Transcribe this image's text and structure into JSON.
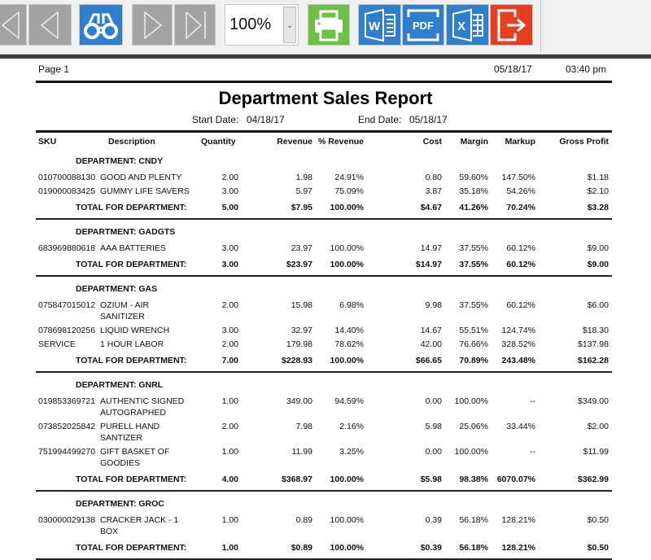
{
  "toolbar": {
    "buttons": [
      {
        "name": "first-page",
        "icon": "first-page-icon"
      },
      {
        "name": "previous-page",
        "icon": "previous-page-icon"
      },
      {
        "name": "find",
        "icon": "binoculars-icon"
      },
      {
        "name": "next-page",
        "icon": "next-page-icon"
      },
      {
        "name": "last-page",
        "icon": "last-page-icon"
      },
      {
        "name": "print",
        "icon": "printer-icon"
      },
      {
        "name": "export-word",
        "icon": "word-icon",
        "label": "W"
      },
      {
        "name": "export-pdf",
        "icon": "pdf-icon",
        "label": "PDF"
      },
      {
        "name": "export-excel",
        "icon": "excel-icon",
        "label": "X"
      },
      {
        "name": "exit",
        "icon": "exit-icon"
      }
    ],
    "zoom_value": "100%",
    "colors": {
      "gray": "#a3a3a3",
      "blue": "#2f7fcd",
      "green": "#6cc043",
      "red": "#e2401f"
    }
  },
  "report": {
    "page_label": "Page 1",
    "print_date": "05/18/17",
    "print_time": "03:40 pm",
    "title": "Department Sales Report",
    "start_date_label": "Start Date:",
    "start_date": "04/18/17",
    "end_date_label": "End Date:",
    "end_date": "05/18/17",
    "columns": [
      "SKU",
      "Description",
      "Quantity",
      "Revenue",
      "% Revenue",
      "Cost",
      "Margin",
      "Markup",
      "Gross Profit"
    ],
    "total_label": "TOTAL FOR DEPARTMENT:",
    "departments": [
      {
        "title": "DEPARTMENT: CNDY",
        "items": [
          [
            "010700088130",
            "GOOD AND PLENTY",
            "2.00",
            "1.98",
            "24.91%",
            "0.80",
            "59.60%",
            "147.50%",
            "$1.18"
          ],
          [
            "019000083425",
            "GUMMY LIFE SAVERS",
            "3.00",
            "5.97",
            "75.09%",
            "3.87",
            "35.18%",
            "54.26%",
            "$2.10"
          ]
        ],
        "total": [
          "5.00",
          "$7.95",
          "100.00%",
          "$4.67",
          "41.26%",
          "70.24%",
          "$3.28"
        ]
      },
      {
        "title": "DEPARTMENT: GADGTS",
        "items": [
          [
            "683969880618",
            "AAA BATTERIES",
            "3.00",
            "23.97",
            "100.00%",
            "14.97",
            "37.55%",
            "60.12%",
            "$9.00"
          ]
        ],
        "total": [
          "3.00",
          "$23.97",
          "100.00%",
          "$14.97",
          "37.55%",
          "60.12%",
          "$9.00"
        ]
      },
      {
        "title": "DEPARTMENT: GAS",
        "items": [
          [
            "075847015012",
            "OZIUM - AIR SANITIZER",
            "2.00",
            "15.98",
            "6.98%",
            "9.98",
            "37.55%",
            "60.12%",
            "$6.00"
          ],
          [
            "078698120256",
            "LIQUID WRENCH",
            "3.00",
            "32.97",
            "14.40%",
            "14.67",
            "55.51%",
            "124.74%",
            "$18.30"
          ],
          [
            "SERVICE",
            "1 HOUR LABOR",
            "2.00",
            "179.98",
            "78.62%",
            "42.00",
            "76.66%",
            "328.52%",
            "$137.98"
          ]
        ],
        "total": [
          "7.00",
          "$228.93",
          "100.00%",
          "$66.65",
          "70.89%",
          "243.48%",
          "$162.28"
        ]
      },
      {
        "title": "DEPARTMENT: GNRL",
        "items": [
          [
            "019853369721",
            "AUTHENTIC SIGNED AUTOGRAPHED",
            "1.00",
            "349.00",
            "94.59%",
            "0.00",
            "100.00%",
            "--",
            "$349.00"
          ],
          [
            "073852025842",
            "PURELL HAND SANTIZER",
            "2.00",
            "7.98",
            "2.16%",
            "5.98",
            "25.06%",
            "33.44%",
            "$2.00"
          ],
          [
            "751994499270",
            "GIFT BASKET OF GOODIES",
            "1.00",
            "11.99",
            "3.25%",
            "0.00",
            "100.00%",
            "--",
            "$11.99"
          ]
        ],
        "total": [
          "4.00",
          "$368.97",
          "100.00%",
          "$5.98",
          "98.38%",
          "6070.07%",
          "$362.99"
        ]
      },
      {
        "title": "DEPARTMENT: GROC",
        "items": [
          [
            "030000029138",
            "CRACKER JACK - 1 BOX",
            "1.00",
            "0.89",
            "100.00%",
            "0.39",
            "56.18%",
            "128.21%",
            "$0.50"
          ]
        ],
        "total": [
          "1.00",
          "$0.89",
          "100.00%",
          "$0.39",
          "56.18%",
          "128.21%",
          "$0.50"
        ]
      }
    ]
  }
}
